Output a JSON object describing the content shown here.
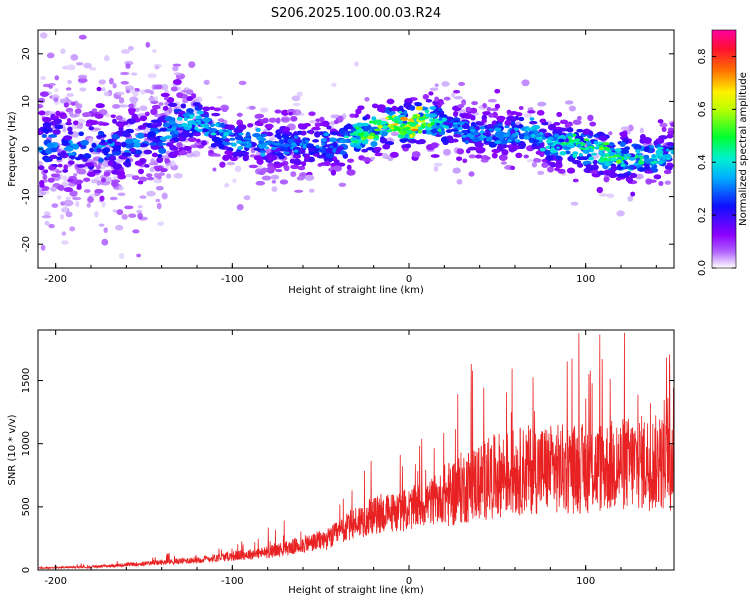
{
  "title": "S206.2025.100.00.03.R24",
  "chart_data": [
    {
      "type": "heatmap",
      "xlabel": "Height of straight line (km)",
      "ylabel": "Frequency (Hz)",
      "xlim": [
        -210,
        150
      ],
      "ylim": [
        -25,
        25
      ],
      "xticks": [
        -200,
        -100,
        0,
        100
      ],
      "yticks": [
        -20,
        -10,
        0,
        10,
        20
      ],
      "grid": false,
      "colorbar": {
        "label": "Normalized spectral amplitude",
        "range": [
          0.0,
          0.9
        ],
        "ticks": [
          "0.0",
          "0.2",
          "0.4",
          "0.6",
          "0.8"
        ],
        "colormap": [
          "#ffffff",
          "#8a00ff",
          "#1010ff",
          "#00e0ff",
          "#00ff30",
          "#fff000",
          "#ff7000",
          "#ff1030",
          "#ff00a0"
        ]
      },
      "ridge": {
        "x": [
          -200,
          -180,
          -160,
          -140,
          -130,
          -120,
          -100,
          -80,
          -60,
          -40,
          -20,
          -10,
          0,
          10,
          20,
          40,
          60,
          70,
          80,
          100,
          120,
          140,
          150
        ],
        "frequency": [
          1,
          0,
          1,
          2,
          6,
          6,
          2,
          1,
          1,
          1,
          4,
          5,
          5,
          6,
          5,
          3,
          3,
          4,
          1,
          0,
          -2,
          -2,
          0
        ]
      }
    },
    {
      "type": "line",
      "xlabel": "Height of straight line (km)",
      "ylabel": "SNR (10 * v/v)",
      "xlim": [
        -210,
        150
      ],
      "ylim": [
        0,
        1900
      ],
      "xticks": [
        -200,
        -100,
        0,
        100
      ],
      "yticks": [
        0,
        500,
        1000,
        1500
      ],
      "color": "#e82222",
      "trend": {
        "x": [
          -210,
          -180,
          -150,
          -120,
          -100,
          -80,
          -60,
          -45,
          -30,
          -20,
          0,
          20,
          30,
          50,
          70,
          100,
          130,
          150
        ],
        "y": [
          15,
          25,
          50,
          80,
          110,
          140,
          200,
          250,
          380,
          430,
          480,
          580,
          650,
          750,
          800,
          800,
          850,
          850
        ]
      }
    }
  ]
}
